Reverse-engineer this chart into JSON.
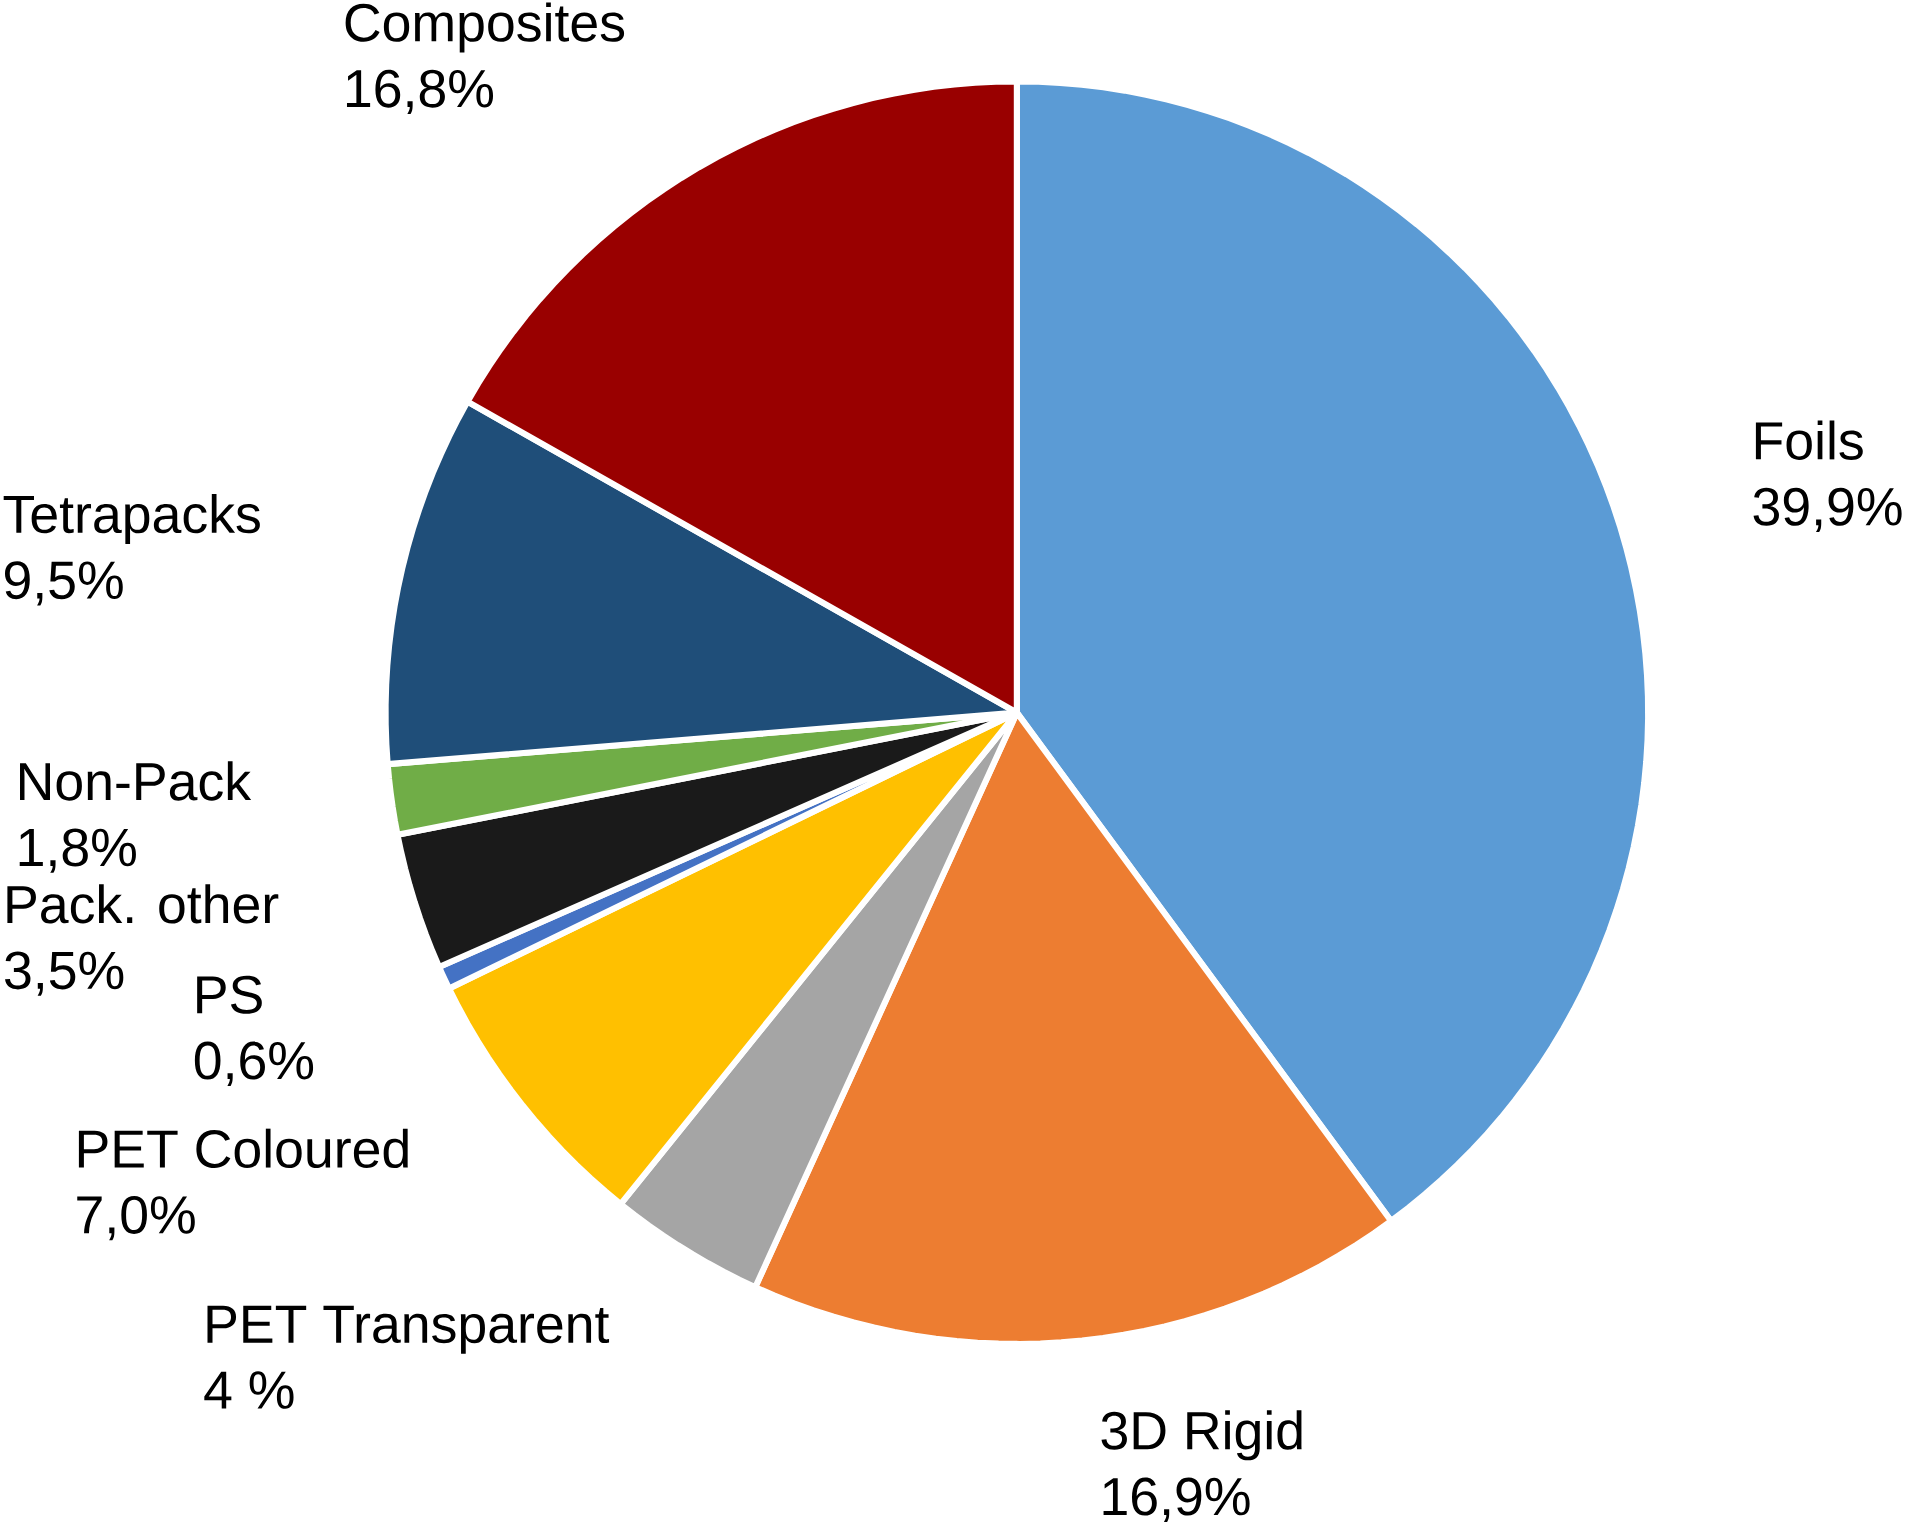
{
  "chart_data": {
    "type": "pie",
    "categories": [
      "Foils",
      "3D Rigid",
      "PET Transparent",
      "PET Coloured",
      "PS",
      "Pack. other",
      "Non-Pack",
      "Tetrapacks",
      "Composites"
    ],
    "values": [
      39.9,
      16.9,
      4.0,
      7.0,
      0.6,
      3.5,
      1.8,
      9.5,
      16.8
    ],
    "value_labels": [
      "39,9%",
      "16,9%",
      "4 %",
      "7,0%",
      "0,6%",
      "3,5%",
      "1,8%",
      "9,5%",
      "16,8%"
    ],
    "colors": [
      "#5b9bd5",
      "#ed7d31",
      "#a5a5a5",
      "#ffc000",
      "#4472c4",
      "#1a1a1a",
      "#70ad47",
      "#1f4e79",
      "#990000"
    ]
  }
}
